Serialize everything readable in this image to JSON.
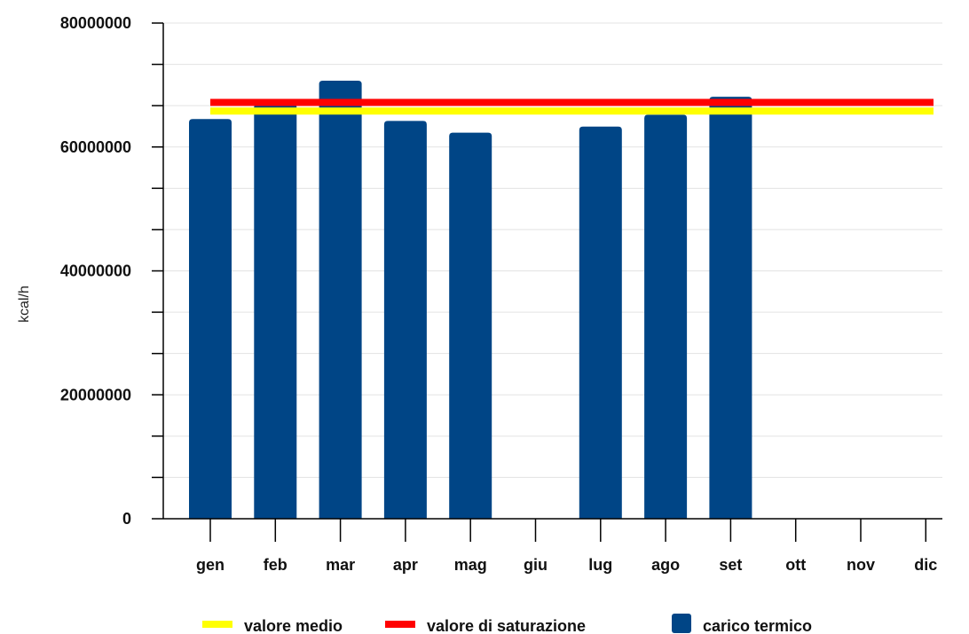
{
  "chart_data": {
    "type": "bar",
    "title": "",
    "xlabel": "",
    "ylabel": "kcal/h",
    "ylim": [
      0,
      80000000
    ],
    "yticks": [
      0,
      20000000,
      40000000,
      60000000,
      80000000
    ],
    "ytick_labels": [
      "0",
      "20000000",
      "40000000",
      "60000000",
      "80000000"
    ],
    "categories": [
      "gen",
      "feb",
      "mar",
      "apr",
      "mag",
      "giu",
      "lug",
      "ago",
      "set",
      "ott",
      "nov",
      "dic"
    ],
    "series": [
      {
        "name": "carico termico",
        "kind": "bar",
        "color": "#004586",
        "values": [
          64500000,
          67000000,
          70700000,
          64200000,
          62300000,
          null,
          63300000,
          65200000,
          68100000,
          null,
          null,
          null
        ]
      },
      {
        "name": "valore medio",
        "kind": "line",
        "color": "#ffff00",
        "value": 65800000
      },
      {
        "name": "valore di saturazione",
        "kind": "line",
        "color": "#ff0000",
        "value": 67200000
      }
    ],
    "grid": true,
    "legend_position": "bottom"
  }
}
